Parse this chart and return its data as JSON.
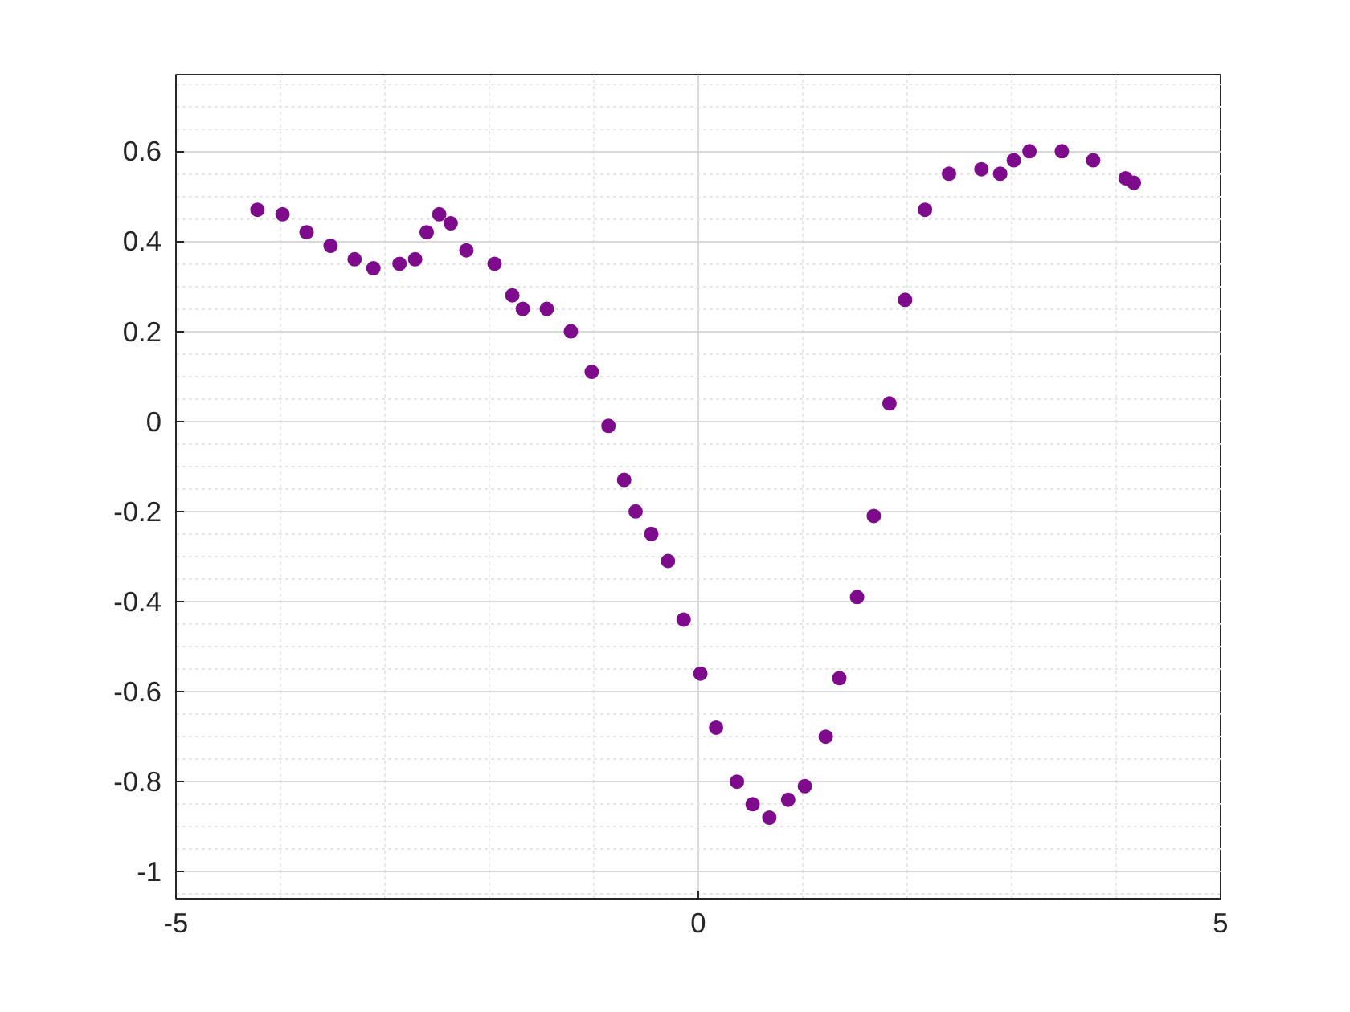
{
  "chart_data": {
    "type": "scatter",
    "marker": "circle",
    "grid": true,
    "xlim": [
      -5,
      5
    ],
    "xticks": [
      -5,
      0,
      5
    ],
    "ylim": [
      -1.06,
      0.77
    ],
    "yticks": [
      -1,
      -0.8,
      -0.6,
      -0.4,
      -0.2,
      0,
      0.2,
      0.4,
      0.6
    ],
    "series": [
      {
        "color": "#7e0b8c",
        "x": [
          -4.22,
          -3.98,
          -3.75,
          -3.52,
          -3.29,
          -3.11,
          -2.86,
          -2.71,
          -2.6,
          -2.48,
          -2.37,
          -2.22,
          -1.95,
          -1.78,
          -1.68,
          -1.45,
          -1.22,
          -1.02,
          -0.86,
          -0.71,
          -0.6,
          -0.45,
          -0.29,
          -0.14,
          0.02,
          0.17,
          0.37,
          0.52,
          0.68,
          0.86,
          1.02,
          1.22,
          1.35,
          1.52,
          1.68,
          1.83,
          1.98,
          2.17,
          2.4,
          2.71,
          2.89,
          3.02,
          3.17,
          3.48,
          3.78,
          4.09,
          4.17
        ],
        "values": [
          0.47,
          0.46,
          0.42,
          0.39,
          0.36,
          0.34,
          0.35,
          0.36,
          0.42,
          0.46,
          0.44,
          0.38,
          0.35,
          0.28,
          0.25,
          0.25,
          0.2,
          0.11,
          -0.01,
          -0.13,
          -0.2,
          -0.25,
          -0.31,
          -0.44,
          -0.56,
          -0.68,
          -0.8,
          -0.85,
          -0.88,
          -0.84,
          -0.81,
          -0.7,
          -0.57,
          -0.39,
          -0.21,
          0.04,
          0.27,
          0.47,
          0.55,
          0.56,
          0.55,
          0.58,
          0.6,
          0.6,
          0.58,
          0.54,
          0.53
        ]
      }
    ]
  }
}
